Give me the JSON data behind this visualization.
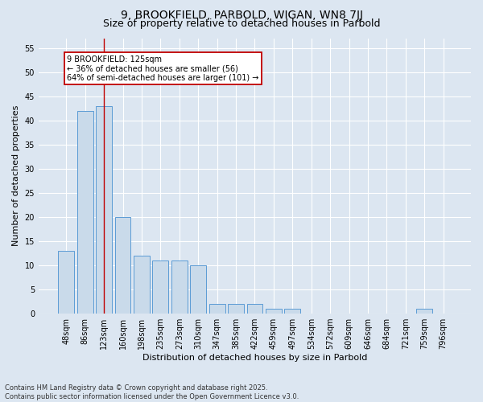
{
  "title_line1": "9, BROOKFIELD, PARBOLD, WIGAN, WN8 7JJ",
  "title_line2": "Size of property relative to detached houses in Parbold",
  "xlabel": "Distribution of detached houses by size in Parbold",
  "ylabel": "Number of detached properties",
  "categories": [
    "48sqm",
    "86sqm",
    "123sqm",
    "160sqm",
    "198sqm",
    "235sqm",
    "273sqm",
    "310sqm",
    "347sqm",
    "385sqm",
    "422sqm",
    "459sqm",
    "497sqm",
    "534sqm",
    "572sqm",
    "609sqm",
    "646sqm",
    "684sqm",
    "721sqm",
    "759sqm",
    "796sqm"
  ],
  "values": [
    13,
    42,
    43,
    20,
    12,
    11,
    11,
    10,
    2,
    2,
    2,
    1,
    1,
    0,
    0,
    0,
    0,
    0,
    0,
    1,
    0
  ],
  "bar_color": "#c9daea",
  "bar_edge_color": "#5b9bd5",
  "highlight_bar_index": 2,
  "highlight_line_color": "#c00000",
  "annotation_box_text": "9 BROOKFIELD: 125sqm\n← 36% of detached houses are smaller (56)\n64% of semi-detached houses are larger (101) →",
  "annotation_box_color": "#c00000",
  "annotation_text_color": "#000000",
  "ylim": [
    0,
    57
  ],
  "yticks": [
    0,
    5,
    10,
    15,
    20,
    25,
    30,
    35,
    40,
    45,
    50,
    55
  ],
  "background_color": "#dce6f1",
  "plot_bg_color": "#dce6f1",
  "grid_color": "#ffffff",
  "footer": "Contains HM Land Registry data © Crown copyright and database right 2025.\nContains public sector information licensed under the Open Government Licence v3.0.",
  "title1_fontsize": 10,
  "title2_fontsize": 9,
  "ylabel_fontsize": 8,
  "xlabel_fontsize": 8,
  "tick_fontsize": 7,
  "footer_fontsize": 6,
  "annot_fontsize": 7
}
